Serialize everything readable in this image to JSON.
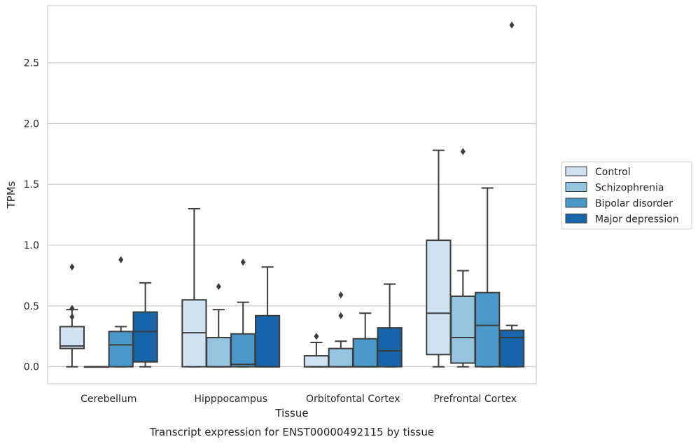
{
  "chart_data": {
    "type": "boxplot",
    "title": "Transcript expression for ENST00000492115 by tissue",
    "xlabel": "Tissue",
    "ylabel": "TPMs",
    "ylim": [
      -0.14,
      2.97
    ],
    "yticks": [
      "0.0",
      "0.5",
      "1.0",
      "1.5",
      "2.0",
      "2.5"
    ],
    "ytick_values": [
      0,
      0.5,
      1.0,
      1.5,
      2.0,
      2.5
    ],
    "grid": true,
    "legend_position": "right-outside",
    "categories": [
      "Cerebellum",
      "Hipppocampus",
      "Orbitofontal Cortex",
      "Prefrontal Cortex"
    ],
    "series": [
      {
        "name": "Control",
        "color": "#d0e1f2",
        "boxes": [
          {
            "whisker_low": 0.0,
            "q1": 0.15,
            "median": 0.17,
            "q3": 0.33,
            "whisker_high": 0.47,
            "outliers": [
              0.82,
              0.48,
              0.41
            ]
          },
          {
            "whisker_low": 0.0,
            "q1": 0.0,
            "median": 0.28,
            "q3": 0.55,
            "whisker_high": 1.3,
            "outliers": []
          },
          {
            "whisker_low": 0.0,
            "q1": 0.0,
            "median": 0.0,
            "q3": 0.09,
            "whisker_high": 0.2,
            "outliers": [
              0.25
            ]
          },
          {
            "whisker_low": 0.0,
            "q1": 0.1,
            "median": 0.44,
            "q3": 1.04,
            "whisker_high": 1.78,
            "outliers": []
          }
        ]
      },
      {
        "name": "Schizophrenia",
        "color": "#94c4df",
        "boxes": [
          {
            "whisker_low": 0.0,
            "q1": 0.0,
            "median": 0.0,
            "q3": 0.0,
            "whisker_high": 0.0,
            "outliers": []
          },
          {
            "whisker_low": 0.0,
            "q1": 0.0,
            "median": 0.0,
            "q3": 0.24,
            "whisker_high": 0.47,
            "outliers": [
              0.66
            ]
          },
          {
            "whisker_low": 0.0,
            "q1": 0.0,
            "median": 0.0,
            "q3": 0.15,
            "whisker_high": 0.21,
            "outliers": [
              0.59,
              0.42
            ]
          },
          {
            "whisker_low": 0.0,
            "q1": 0.03,
            "median": 0.24,
            "q3": 0.58,
            "whisker_high": 0.79,
            "outliers": [
              1.77
            ]
          }
        ]
      },
      {
        "name": "Bipolar disorder",
        "color": "#4a98c9",
        "boxes": [
          {
            "whisker_low": 0.0,
            "q1": 0.0,
            "median": 0.18,
            "q3": 0.29,
            "whisker_high": 0.33,
            "outliers": [
              0.88
            ]
          },
          {
            "whisker_low": 0.0,
            "q1": 0.0,
            "median": 0.02,
            "q3": 0.27,
            "whisker_high": 0.53,
            "outliers": [
              0.86
            ]
          },
          {
            "whisker_low": 0.0,
            "q1": 0.0,
            "median": 0.0,
            "q3": 0.23,
            "whisker_high": 0.44,
            "outliers": []
          },
          {
            "whisker_low": 0.0,
            "q1": 0.0,
            "median": 0.34,
            "q3": 0.61,
            "whisker_high": 1.47,
            "outliers": []
          }
        ]
      },
      {
        "name": "Major depression",
        "color": "#1764ab",
        "boxes": [
          {
            "whisker_low": 0.0,
            "q1": 0.04,
            "median": 0.29,
            "q3": 0.45,
            "whisker_high": 0.69,
            "outliers": []
          },
          {
            "whisker_low": 0.0,
            "q1": 0.0,
            "median": 0.0,
            "q3": 0.42,
            "whisker_high": 0.82,
            "outliers": []
          },
          {
            "whisker_low": 0.0,
            "q1": 0.0,
            "median": 0.13,
            "q3": 0.32,
            "whisker_high": 0.68,
            "outliers": []
          },
          {
            "whisker_low": 0.0,
            "q1": 0.0,
            "median": 0.24,
            "q3": 0.3,
            "whisker_high": 0.34,
            "outliers": [
              2.81
            ]
          }
        ]
      }
    ]
  }
}
